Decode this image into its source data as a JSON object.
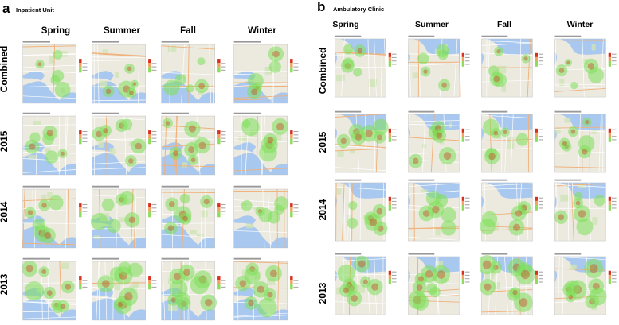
{
  "panel_a": {
    "letter": "a",
    "title": "Inpatient Unit",
    "seasons": [
      "Spring",
      "Summer",
      "Fall",
      "Winter"
    ],
    "rows": [
      "Combined",
      "2015",
      "2014",
      "2013"
    ]
  },
  "panel_b": {
    "letter": "b",
    "title": "Ambulatory Clinic",
    "seasons": [
      "Spring",
      "Summer",
      "Fall",
      "Winter"
    ],
    "rows": [
      "Combined",
      "2015",
      "2014",
      "2013"
    ]
  },
  "colors": {
    "map_land": "#ece9df",
    "water": "#a9c8ef",
    "park": "#cfe3b6",
    "road_major": "#f0b17a",
    "road_minor": "#ffffff",
    "heat_low": "#7ee05a",
    "heat_high": "#c8502a",
    "legend_high": "#d7301f",
    "legend_mid": "#f4a261",
    "legend_low": "#8fdc5a"
  }
}
